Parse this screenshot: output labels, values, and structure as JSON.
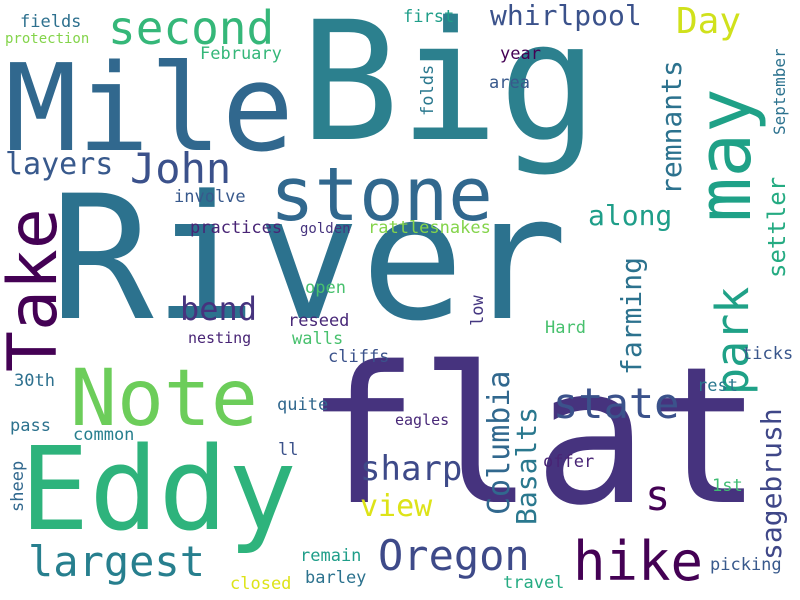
{
  "words": [
    {
      "text": "River",
      "color": "#2c728e"
    },
    {
      "text": "flat",
      "color": "#46337e"
    },
    {
      "text": "Big",
      "color": "#2c808e"
    },
    {
      "text": "Mile",
      "color": "#31688e"
    },
    {
      "text": "Eddy",
      "color": "#2eb37c"
    },
    {
      "text": "stone",
      "color": "#31688e"
    },
    {
      "text": "Note",
      "color": "#6ccd5a"
    },
    {
      "text": "Take",
      "color": "#440154"
    },
    {
      "text": "may",
      "color": "#1fa187"
    },
    {
      "text": "hike",
      "color": "#440154"
    },
    {
      "text": "second",
      "color": "#35b779"
    },
    {
      "text": "Oregon",
      "color": "#3e4a89"
    },
    {
      "text": "largest",
      "color": "#277f8e"
    },
    {
      "text": "John",
      "color": "#3b518b"
    },
    {
      "text": "state",
      "color": "#3b528b"
    },
    {
      "text": "park",
      "color": "#1fa187"
    },
    {
      "text": "Day",
      "color": "#d0e11c"
    },
    {
      "text": "sharp",
      "color": "#3e4a89"
    },
    {
      "text": "whirlpool",
      "color": "#3b528b"
    },
    {
      "text": "layers",
      "color": "#38598c"
    },
    {
      "text": "bend",
      "color": "#46337e"
    },
    {
      "text": "view",
      "color": "#dde318"
    },
    {
      "text": "along",
      "color": "#1f9e89"
    },
    {
      "text": "s",
      "color": "#440154"
    },
    {
      "text": "Columbia",
      "color": "#31688e"
    },
    {
      "text": "Basalts",
      "color": "#2a788e"
    },
    {
      "text": "farming",
      "color": "#2c728e"
    },
    {
      "text": "remnants",
      "color": "#2c728e"
    },
    {
      "text": "settler",
      "color": "#25ab82"
    },
    {
      "text": "sagebrush",
      "color": "#3f4788"
    },
    {
      "text": "September",
      "color": "#2c728e"
    },
    {
      "text": "ticks",
      "color": "#39568c"
    },
    {
      "text": "practices",
      "color": "#482475"
    },
    {
      "text": "rattlesnakes",
      "color": "#84d44b"
    },
    {
      "text": "involve",
      "color": "#38598c"
    },
    {
      "text": "golden",
      "color": "#46337e"
    },
    {
      "text": "February",
      "color": "#35b779"
    },
    {
      "text": "fields",
      "color": "#2d708e"
    },
    {
      "text": "protection",
      "color": "#84d44b"
    },
    {
      "text": "first",
      "color": "#1f9e89"
    },
    {
      "text": "year",
      "color": "#440154"
    },
    {
      "text": "area",
      "color": "#38598c"
    },
    {
      "text": "folds",
      "color": "#2a788e"
    },
    {
      "text": "open",
      "color": "#48c16e"
    },
    {
      "text": "low",
      "color": "#453781"
    },
    {
      "text": "reseed",
      "color": "#482878"
    },
    {
      "text": "nesting",
      "color": "#482475"
    },
    {
      "text": "walls",
      "color": "#48c16e"
    },
    {
      "text": "cliffs",
      "color": "#3b528b"
    },
    {
      "text": "Hard",
      "color": "#48c16e"
    },
    {
      "text": "30th",
      "color": "#2d708e"
    },
    {
      "text": "rest",
      "color": "#2a788e"
    },
    {
      "text": "quite",
      "color": "#31688e"
    },
    {
      "text": "eagles",
      "color": "#482878"
    },
    {
      "text": "pass",
      "color": "#2c728e"
    },
    {
      "text": "common",
      "color": "#277f8e"
    },
    {
      "text": "ll",
      "color": "#3b528b"
    },
    {
      "text": "offer",
      "color": "#482475"
    },
    {
      "text": "sheep",
      "color": "#31688e"
    },
    {
      "text": "1st",
      "color": "#3fbc73"
    },
    {
      "text": "remain",
      "color": "#1f9e89"
    },
    {
      "text": "picking",
      "color": "#38598c"
    },
    {
      "text": "closed",
      "color": "#dde318"
    },
    {
      "text": "barley",
      "color": "#2c728e"
    },
    {
      "text": "travel",
      "color": "#25ab82"
    }
  ]
}
